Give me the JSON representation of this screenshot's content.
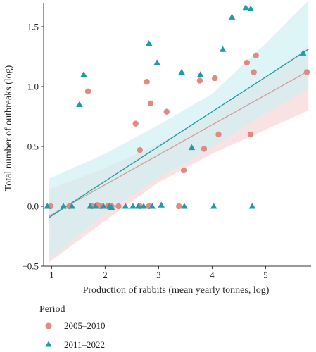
{
  "chart_data": {
    "type": "scatter",
    "xlabel": "Production of rabbits (mean yearly tonnes, log)",
    "ylabel": "Total number of outbreaks (log)",
    "xlim": [
      0.85,
      5.85
    ],
    "ylim": [
      -0.5,
      1.7
    ],
    "x_ticks": [
      1,
      2,
      3,
      4,
      5
    ],
    "y_ticks": [
      -0.5,
      0.0,
      0.5,
      1.0,
      1.5
    ],
    "x_tick_labels": [
      "1",
      "2",
      "3",
      "4",
      "5"
    ],
    "y_tick_labels": [
      "−0.5",
      "0.0",
      "0.5",
      "1.0",
      "1.5"
    ],
    "grid": false,
    "legend_title": "Period",
    "legend_position": "bottom-left",
    "series": [
      {
        "name": "2005–2010",
        "marker": "circle",
        "color": "#e08a83",
        "line_color": "#d49a9a",
        "band_color": "#f7d3d2",
        "fit": {
          "intercept": -0.32,
          "slope": 0.25
        },
        "band": {
          "x": [
            0.95,
            2.0,
            3.0,
            4.0,
            5.0,
            5.8
          ],
          "lower": [
            -0.47,
            -0.12,
            0.2,
            0.44,
            0.64,
            0.8
          ],
          "upper": [
            0.14,
            0.32,
            0.52,
            0.78,
            1.08,
            1.34
          ]
        },
        "points": [
          {
            "x": 0.98,
            "y": 0.0
          },
          {
            "x": 1.33,
            "y": 0.0
          },
          {
            "x": 1.68,
            "y": 0.96
          },
          {
            "x": 1.75,
            "y": 0.0
          },
          {
            "x": 1.85,
            "y": 0.01
          },
          {
            "x": 1.92,
            "y": 0.0
          },
          {
            "x": 2.05,
            "y": 0.0
          },
          {
            "x": 2.12,
            "y": 0.0
          },
          {
            "x": 2.25,
            "y": 0.0
          },
          {
            "x": 2.57,
            "y": 0.69
          },
          {
            "x": 2.65,
            "y": 0.0
          },
          {
            "x": 2.65,
            "y": 0.47
          },
          {
            "x": 2.78,
            "y": 1.04
          },
          {
            "x": 2.82,
            "y": 0.0
          },
          {
            "x": 2.85,
            "y": 0.86
          },
          {
            "x": 3.15,
            "y": 0.79
          },
          {
            "x": 3.38,
            "y": 0.0
          },
          {
            "x": 3.47,
            "y": 0.3
          },
          {
            "x": 3.77,
            "y": 1.05
          },
          {
            "x": 3.85,
            "y": 0.48
          },
          {
            "x": 4.05,
            "y": 1.07
          },
          {
            "x": 4.12,
            "y": 0.6
          },
          {
            "x": 4.65,
            "y": 1.2
          },
          {
            "x": 4.72,
            "y": 0.6
          },
          {
            "x": 4.78,
            "y": 1.12
          },
          {
            "x": 4.82,
            "y": 1.26
          },
          {
            "x": 5.77,
            "y": 1.12
          }
        ]
      },
      {
        "name": "2011–2022",
        "marker": "triangle",
        "color": "#1f9aa6",
        "line_color": "#1f9aa6",
        "band_color": "#cdeff2",
        "fit": {
          "intercept": -0.37,
          "slope": 0.29
        },
        "band": {
          "x": [
            0.95,
            2.0,
            3.0,
            4.0,
            5.0,
            5.8
          ],
          "lower": [
            -0.44,
            -0.06,
            0.24,
            0.49,
            0.78,
            0.98
          ],
          "upper": [
            0.23,
            0.44,
            0.68,
            0.94,
            1.36,
            1.72
          ]
        },
        "points": [
          {
            "x": 0.92,
            "y": 0.0
          },
          {
            "x": 1.22,
            "y": 0.0
          },
          {
            "x": 1.38,
            "y": 0.0
          },
          {
            "x": 1.52,
            "y": 0.85
          },
          {
            "x": 1.6,
            "y": 1.1
          },
          {
            "x": 1.72,
            "y": 0.0
          },
          {
            "x": 1.82,
            "y": 0.0
          },
          {
            "x": 1.97,
            "y": 0.0
          },
          {
            "x": 2.08,
            "y": 0.0
          },
          {
            "x": 2.12,
            "y": -0.01
          },
          {
            "x": 2.38,
            "y": 0.0
          },
          {
            "x": 2.52,
            "y": 0.0
          },
          {
            "x": 2.62,
            "y": 0.0
          },
          {
            "x": 2.72,
            "y": 0.0
          },
          {
            "x": 2.82,
            "y": 1.36
          },
          {
            "x": 2.88,
            "y": 0.0
          },
          {
            "x": 2.97,
            "y": 1.2
          },
          {
            "x": 3.05,
            "y": 0.01
          },
          {
            "x": 3.43,
            "y": 1.12
          },
          {
            "x": 3.48,
            "y": 0.0
          },
          {
            "x": 3.62,
            "y": 0.49
          },
          {
            "x": 3.78,
            "y": 1.1
          },
          {
            "x": 4.03,
            "y": 0.0
          },
          {
            "x": 4.2,
            "y": 1.31
          },
          {
            "x": 4.37,
            "y": 1.58
          },
          {
            "x": 4.63,
            "y": 1.66
          },
          {
            "x": 4.72,
            "y": 1.65
          },
          {
            "x": 4.75,
            "y": 0.0
          },
          {
            "x": 5.7,
            "y": 1.28
          }
        ]
      }
    ]
  }
}
